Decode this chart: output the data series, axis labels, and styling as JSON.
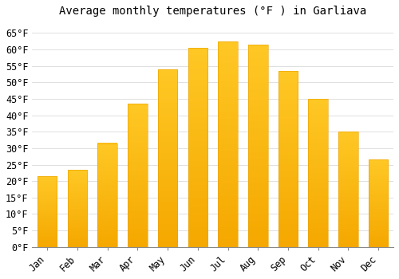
{
  "title": "Average monthly temperatures (°F ) in Garliava",
  "months": [
    "Jan",
    "Feb",
    "Mar",
    "Apr",
    "May",
    "Jun",
    "Jul",
    "Aug",
    "Sep",
    "Oct",
    "Nov",
    "Dec"
  ],
  "values": [
    21.5,
    23.5,
    31.5,
    43.5,
    54.0,
    60.5,
    62.5,
    61.5,
    53.5,
    45.0,
    35.0,
    26.5
  ],
  "bar_color_top": "#FFC825",
  "bar_color_bottom": "#F5A800",
  "background_color": "#FFFFFF",
  "grid_color": "#E0E0E0",
  "ylim": [
    0,
    68
  ],
  "yticks": [
    0,
    5,
    10,
    15,
    20,
    25,
    30,
    35,
    40,
    45,
    50,
    55,
    60,
    65
  ],
  "title_fontsize": 10,
  "tick_fontsize": 8.5,
  "tick_font": "monospace"
}
